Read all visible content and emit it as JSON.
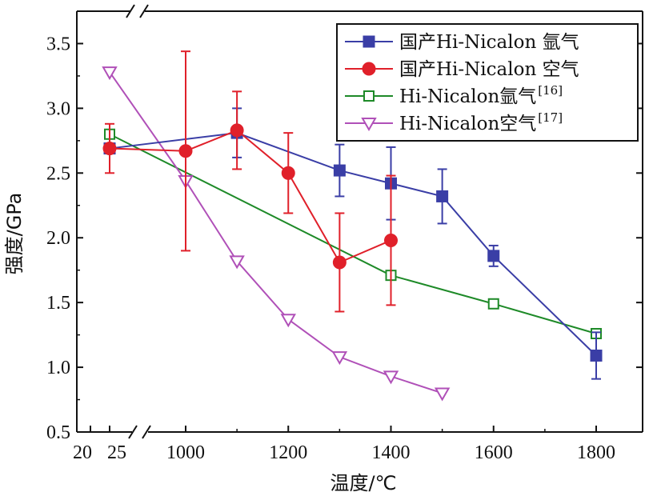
{
  "chart_data": {
    "type": "line",
    "xlabel": "温度/℃",
    "ylabel": "强度/GPa",
    "ylim": [
      0.5,
      3.75
    ],
    "y_ticks": [
      0.5,
      1.0,
      1.5,
      2.0,
      2.5,
      3.0,
      3.5
    ],
    "y_tick_labels": [
      "0.5",
      "1.0",
      "1.5",
      "2.0",
      "2.5",
      "3.0",
      "3.5"
    ],
    "x_axis_break": {
      "low_segment": [
        20,
        25
      ],
      "high_segment": [
        1000,
        1800
      ]
    },
    "x_ticks": [
      20,
      25,
      1000,
      1200,
      1400,
      1600,
      1800
    ],
    "x_tick_labels": [
      "20",
      "25",
      "1000",
      "1200",
      "1400",
      "1600",
      "1800"
    ],
    "grid": false,
    "legend_position": "top-right",
    "series": [
      {
        "name": "国产Hi-Nicalon 氩气",
        "color": "#3a3ea6",
        "marker": "square-filled",
        "x": [
          25,
          1100,
          1300,
          1400,
          1500,
          1600,
          1800
        ],
        "y": [
          2.69,
          2.81,
          2.52,
          2.42,
          2.32,
          1.86,
          1.09
        ],
        "err": [
          0,
          0.19,
          0.2,
          0.28,
          0.21,
          0.08,
          0.18
        ]
      },
      {
        "name": "国产Hi-Nicalon 空气",
        "color": "#e0202a",
        "marker": "circle-filled",
        "x": [
          25,
          1000,
          1100,
          1200,
          1300,
          1400
        ],
        "y": [
          2.69,
          2.67,
          2.83,
          2.5,
          1.81,
          1.98
        ],
        "err": [
          0.19,
          0.77,
          0.3,
          0.31,
          0.38,
          0.5
        ]
      },
      {
        "name": "Hi-Nicalon氩气",
        "ref": "[16]",
        "color": "#1e8a28",
        "marker": "square-open",
        "x": [
          25,
          1400,
          1600,
          1800
        ],
        "y": [
          2.8,
          1.71,
          1.49,
          1.26
        ],
        "err": [
          0,
          0,
          0,
          0
        ]
      },
      {
        "name": "Hi-Nicalon空气",
        "ref": "[17]",
        "color": "#b050b8",
        "marker": "triangle-down-open",
        "x": [
          25,
          1000,
          1100,
          1200,
          1300,
          1400,
          1500
        ],
        "y": [
          3.28,
          2.44,
          1.82,
          1.37,
          1.08,
          0.93,
          0.8
        ],
        "err": [
          0,
          0,
          0,
          0,
          0,
          0,
          0
        ]
      }
    ]
  }
}
